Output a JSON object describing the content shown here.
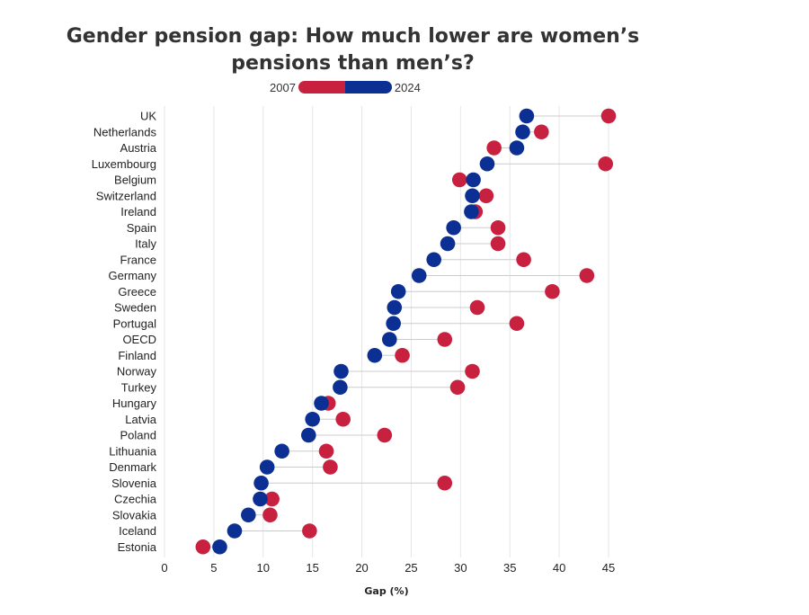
{
  "title_line1": "Gender pension gap: How much lower are women’s",
  "title_line2": "pensions than men’s?",
  "legend": {
    "label_start": "2007",
    "label_end": "2024"
  },
  "colors": {
    "series_2007": "#c8203f",
    "series_2024": "#0c2f93",
    "grid": "#e6e6e6"
  },
  "chart_data": {
    "type": "scatter",
    "xlabel": "Gap (%)",
    "xlim": [
      0,
      45
    ],
    "xticks": [
      0,
      5,
      10,
      15,
      20,
      25,
      30,
      35,
      40,
      45
    ],
    "series": [
      {
        "name": "2007",
        "key": "v2007"
      },
      {
        "name": "2024",
        "key": "v2024"
      }
    ],
    "rows": [
      {
        "country": "UK",
        "v2007": 45.0,
        "v2024": 36.7
      },
      {
        "country": "Netherlands",
        "v2007": 38.2,
        "v2024": 36.3
      },
      {
        "country": "Austria",
        "v2007": 33.4,
        "v2024": 35.7
      },
      {
        "country": "Luxembourg",
        "v2007": 44.7,
        "v2024": 32.7
      },
      {
        "country": "Belgium",
        "v2007": 29.9,
        "v2024": 31.3
      },
      {
        "country": "Switzerland",
        "v2007": 32.6,
        "v2024": 31.2
      },
      {
        "country": "Ireland",
        "v2007": 31.5,
        "v2024": 31.1
      },
      {
        "country": "Spain",
        "v2007": 33.8,
        "v2024": 29.3
      },
      {
        "country": "Italy",
        "v2007": 33.8,
        "v2024": 28.7
      },
      {
        "country": "France",
        "v2007": 36.4,
        "v2024": 27.3
      },
      {
        "country": "Germany",
        "v2007": 42.8,
        "v2024": 25.8
      },
      {
        "country": "Greece",
        "v2007": 39.3,
        "v2024": 23.7
      },
      {
        "country": "Sweden",
        "v2007": 31.7,
        "v2024": 23.3
      },
      {
        "country": "Portugal",
        "v2007": 35.7,
        "v2024": 23.2
      },
      {
        "country": "OECD",
        "v2007": 28.4,
        "v2024": 22.8
      },
      {
        "country": "Finland",
        "v2007": 24.1,
        "v2024": 21.3
      },
      {
        "country": "Norway",
        "v2007": 31.2,
        "v2024": 17.9
      },
      {
        "country": "Turkey",
        "v2007": 29.7,
        "v2024": 17.8
      },
      {
        "country": "Hungary",
        "v2007": 16.6,
        "v2024": 15.9
      },
      {
        "country": "Latvia",
        "v2007": 18.1,
        "v2024": 15.0
      },
      {
        "country": "Poland",
        "v2007": 22.3,
        "v2024": 14.6
      },
      {
        "country": "Lithuania",
        "v2007": 16.4,
        "v2024": 11.9
      },
      {
        "country": "Denmark",
        "v2007": 16.8,
        "v2024": 10.4
      },
      {
        "country": "Slovenia",
        "v2007": 28.4,
        "v2024": 9.8
      },
      {
        "country": "Czechia",
        "v2007": 10.9,
        "v2024": 9.7
      },
      {
        "country": "Slovakia",
        "v2007": 10.7,
        "v2024": 8.5
      },
      {
        "country": "Iceland",
        "v2007": 14.7,
        "v2024": 7.1
      },
      {
        "country": "Estonia",
        "v2007": 3.9,
        "v2024": 5.6
      }
    ]
  }
}
